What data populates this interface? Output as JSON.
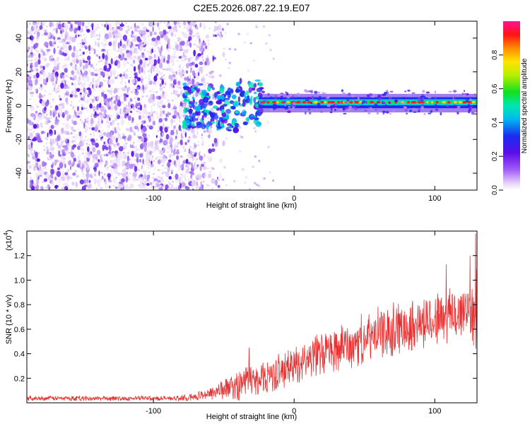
{
  "title": "C2E5.2026.087.22.19.E07",
  "colors": {
    "line": "#e83232",
    "frame": "#000000",
    "background": "#ffffff"
  },
  "chart_data": [
    {
      "type": "heatmap",
      "title": "C2E5.2026.087.22.19.E07",
      "xlabel": "Height of straight line (km)",
      "ylabel": "Frequency (Hz)",
      "xlim": [
        -190,
        130
      ],
      "ylim": [
        -50,
        50
      ],
      "xticks": [
        -100,
        0,
        100
      ],
      "yticks": [
        -40,
        -20,
        0,
        20,
        40
      ],
      "colorbar": {
        "label": "Normalized spectral amplitude",
        "range": [
          0.0,
          1.0
        ],
        "ticks": [
          0.0,
          0.2,
          0.4,
          0.6,
          0.8
        ],
        "tick_labels": [
          "0.0",
          "0.2",
          "0.4",
          "0.6",
          "0.8"
        ],
        "colormap": "rainbow (white-purple-blue-cyan-green-yellow-red-magenta)"
      },
      "regions": [
        {
          "x_range": [
            -190,
            -60
          ],
          "description": "broadband noise across all frequencies"
        },
        {
          "x_range": [
            -75,
            -25
          ],
          "freq_range": [
            -12,
            16
          ],
          "description": "scattered signal near 0 Hz"
        },
        {
          "x_range": [
            -25,
            130
          ],
          "freq_center": 2,
          "description": "strong narrowband line near 2 Hz"
        }
      ]
    },
    {
      "type": "line",
      "title": "",
      "xlabel": "Height of straight line (km)",
      "ylabel": "SNR (10 * v/v)",
      "y_multiplier": "(x10",
      "y_multiplier_exp": "4",
      "y_multiplier_close": ")",
      "xlim": [
        -190,
        130
      ],
      "ylim": [
        0,
        1.4
      ],
      "xticks": [
        -100,
        0,
        100
      ],
      "yticks": [
        0.2,
        0.4,
        0.6,
        0.8,
        1.0,
        1.2
      ],
      "ytick_labels": [
        "0.2",
        "0.4",
        "0.6",
        "0.8",
        "1.0",
        "1.2"
      ],
      "series": [
        {
          "name": "SNR",
          "x": [
            -190,
            -170,
            -150,
            -130,
            -110,
            -90,
            -75,
            -65,
            -55,
            -45,
            -38,
            -32,
            -25,
            -18,
            -10,
            -5,
            0,
            10,
            20,
            30,
            40,
            50,
            60,
            70,
            80,
            90,
            100,
            108,
            115,
            120,
            125,
            128,
            130
          ],
          "mean": [
            0.035,
            0.035,
            0.035,
            0.035,
            0.035,
            0.035,
            0.04,
            0.06,
            0.09,
            0.12,
            0.15,
            0.18,
            0.2,
            0.22,
            0.24,
            0.27,
            0.3,
            0.35,
            0.4,
            0.43,
            0.46,
            0.5,
            0.54,
            0.58,
            0.62,
            0.64,
            0.66,
            0.7,
            0.7,
            0.72,
            0.75,
            0.78,
            0.8
          ],
          "amplitude": [
            0.02,
            0.02,
            0.02,
            0.02,
            0.02,
            0.02,
            0.025,
            0.04,
            0.08,
            0.1,
            0.14,
            0.15,
            0.14,
            0.15,
            0.15,
            0.15,
            0.16,
            0.17,
            0.18,
            0.19,
            0.2,
            0.2,
            0.21,
            0.22,
            0.22,
            0.22,
            0.23,
            0.24,
            0.25,
            0.26,
            0.3,
            0.35,
            0.4
          ],
          "peaks": [
            {
              "x": -32,
              "y": 0.45
            },
            {
              "x": 108,
              "y": 1.13
            },
            {
              "x": 125,
              "y": 1.2
            },
            {
              "x": 129,
              "y": 1.38
            }
          ]
        }
      ]
    }
  ]
}
